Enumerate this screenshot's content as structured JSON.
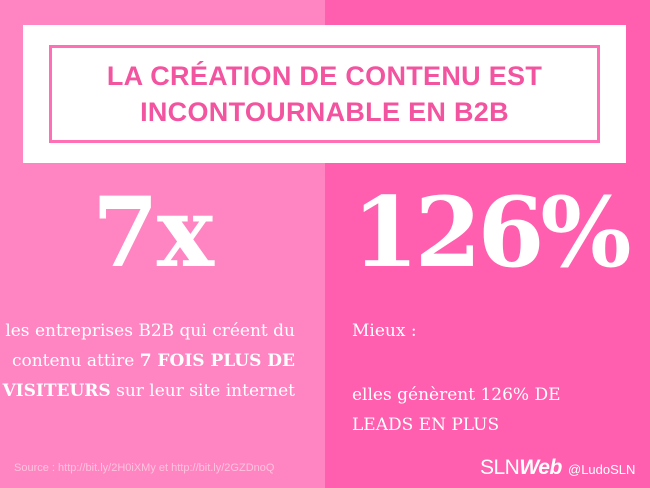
{
  "title": {
    "line1": "LA CRÉATION DE CONTENU EST",
    "line2": "INCONTOURNABLE EN B2B"
  },
  "left": {
    "stat": "7x",
    "desc": {
      "part1": "les entreprises B2B qui créent du contenu attire ",
      "bold": "7 FOIS PLUS DE VISITEURS",
      "part2": " sur leur site internet"
    }
  },
  "right": {
    "stat": "126%",
    "label": "Mieux :",
    "line1": "elles génèrent 126% DE",
    "line2": "LEADS EN PLUS"
  },
  "footer": {
    "source": "Source : http://bit.ly/2H0iXMy et http://bit.ly/2GZDnoQ",
    "brand_sln": "SLN",
    "brand_web": "Web",
    "handle": "@LudoSLN"
  },
  "colors": {
    "left_bg": "#ff85c2",
    "right_bg": "#ff5fae",
    "title_text": "#f2549f"
  }
}
